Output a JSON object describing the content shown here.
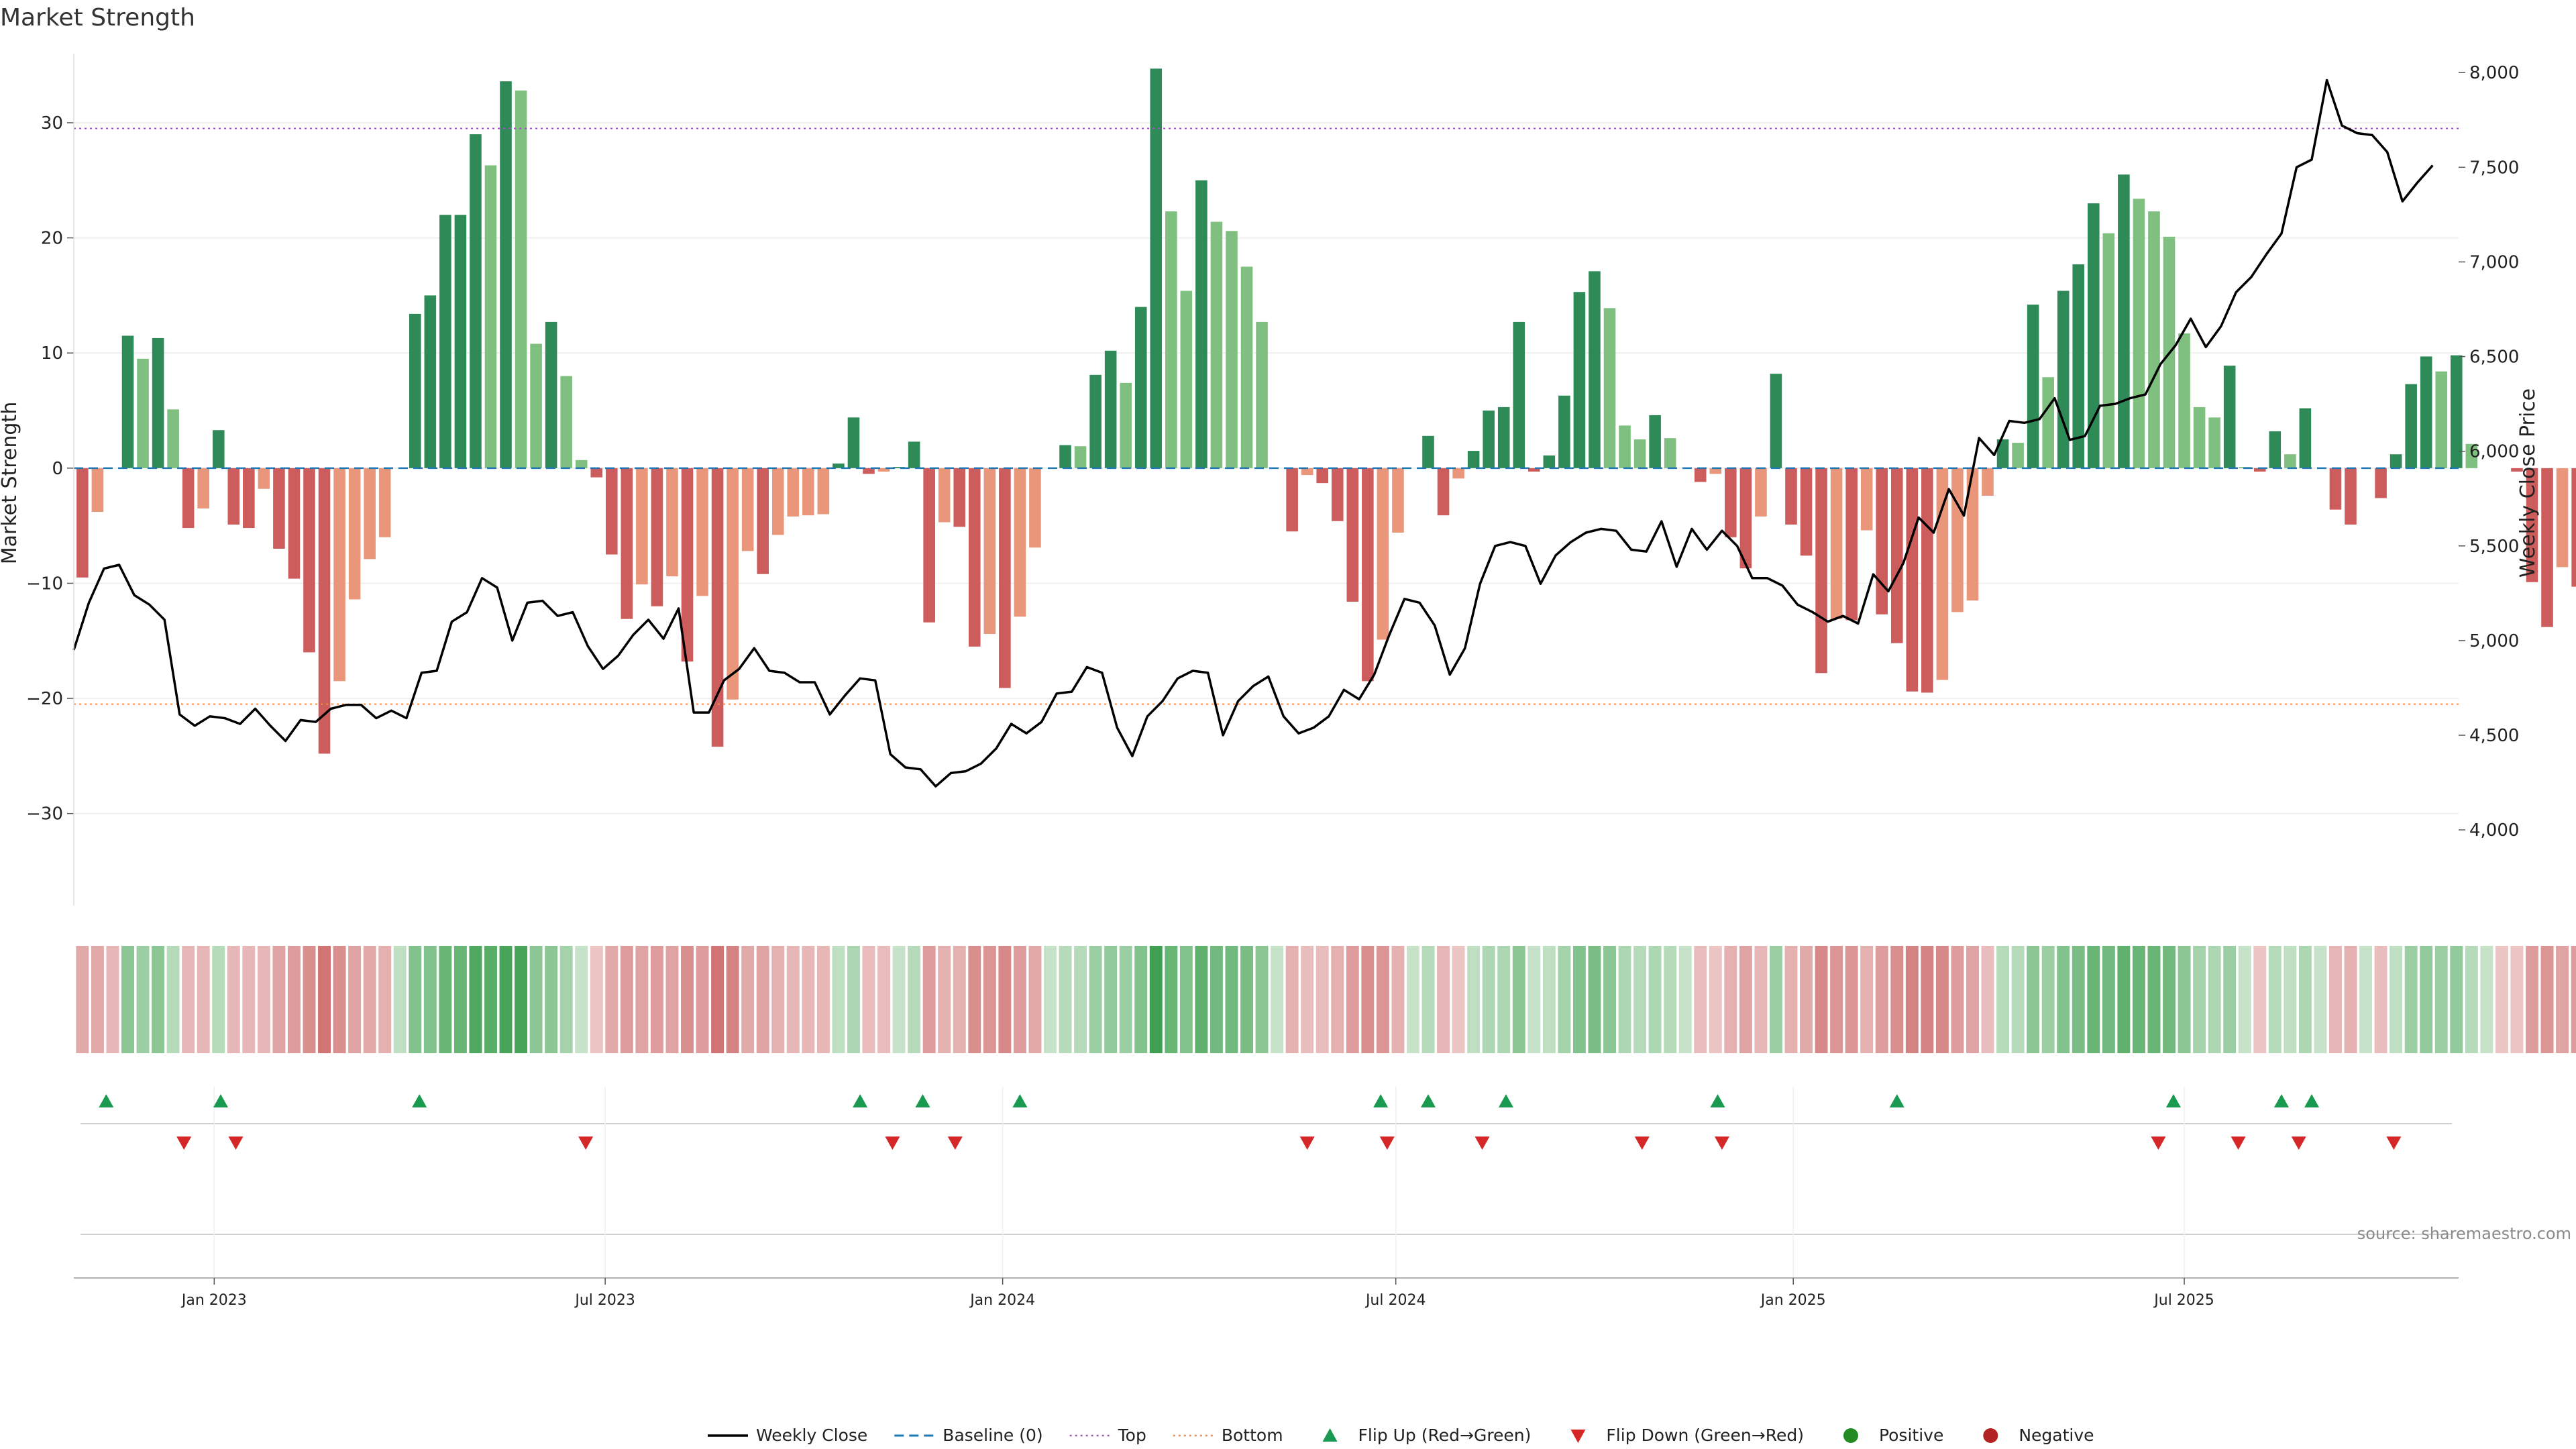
{
  "chart_data": {
    "type": "bar",
    "title": "Market Strength",
    "ylabel_left": "Market Strength",
    "ylabel_right": "Weekly Close Price",
    "source": "source: sharemaestro.com",
    "left_ylim": [
      -38,
      36
    ],
    "left_yticks": [
      30,
      20,
      10,
      0,
      -10,
      -20,
      -30
    ],
    "left_ytick_labels": [
      "30",
      "20",
      "10",
      "0",
      "−10",
      "−20",
      "−30"
    ],
    "right_ylim": [
      3600,
      8100
    ],
    "right_yticks": [
      8000,
      7500,
      7000,
      6500,
      6000,
      5500,
      5000,
      4500,
      4000
    ],
    "right_ytick_labels": [
      "8,000",
      "7,500",
      "7,000",
      "6,500",
      "6,000",
      "5,500",
      "5,000",
      "4,500",
      "4,000"
    ],
    "x_start": "2022-10-28",
    "x_end": "2025-11-05",
    "x_ticks": [
      {
        "date": "2023-01-01",
        "label": "Jan 2023"
      },
      {
        "date": "2023-07-01",
        "label": "Jul 2023"
      },
      {
        "date": "2024-01-01",
        "label": "Jan 2024"
      },
      {
        "date": "2024-07-01",
        "label": "Jul 2024"
      },
      {
        "date": "2025-01-01",
        "label": "Jan 2025"
      },
      {
        "date": "2025-07-01",
        "label": "Jul 2025"
      }
    ],
    "top_threshold": 29.5,
    "bottom_threshold": -20.5,
    "grid": true,
    "legend_position": "bottom",
    "colors": {
      "bar_strong_positive": "#2e8b57",
      "bar_weak_positive": "#7fbf7f",
      "bar_strong_negative": "#cd5c5c",
      "bar_weak_negative": "#e9967a",
      "close_line": "#000000",
      "baseline": "#1f77b4",
      "top": "#9b59b6",
      "bottom": "#f08c50",
      "flip_up": "#1a9a50",
      "flip_down": "#d62728",
      "positive": "#228b22",
      "negative": "#b22222"
    },
    "strength_first_week": "2022-11-01",
    "strength": [
      -9.5,
      -3.8,
      0,
      11.5,
      9.5,
      11.3,
      5.1,
      -5.2,
      -3.5,
      3.3,
      -4.9,
      -5.2,
      -1.8,
      -7,
      -9.6,
      -16,
      -24.8,
      -18.5,
      -11.4,
      -7.9,
      -6,
      0,
      13.4,
      15,
      22,
      22,
      29,
      26.3,
      33.6,
      32.8,
      10.8,
      12.7,
      8,
      0.7,
      -0.8,
      -7.5,
      -13.1,
      -10.1,
      -12,
      -9.4,
      -16.8,
      -11.1,
      -24.2,
      -20.1,
      -7.2,
      -9.2,
      -5.8,
      -4.2,
      -4.1,
      -4,
      0.4,
      4.4,
      -0.5,
      -0.3,
      0.1,
      2.3,
      -13.4,
      -4.7,
      -5.1,
      -15.5,
      -14.4,
      -19.1,
      -12.9,
      -6.9,
      0,
      2,
      1.9,
      8.1,
      10.2,
      7.4,
      14,
      34.7,
      22.3,
      15.4,
      25,
      21.4,
      20.6,
      17.5,
      12.7,
      0,
      -5.5,
      -0.6,
      -1.3,
      -4.6,
      -11.6,
      -18.5,
      -14.9,
      -5.6,
      0,
      2.8,
      -4.1,
      -0.9,
      1.5,
      5,
      5.3,
      12.7,
      -0.3,
      1.1,
      6.3,
      15.3,
      17.1,
      13.9,
      3.7,
      2.5,
      4.6,
      2.6,
      0,
      -1.2,
      -0.5,
      -6,
      -8.7,
      -4.2,
      8.2,
      -4.9,
      -7.6,
      -17.8,
      -13.1,
      -13.2,
      -5.4,
      -12.7,
      -15.2,
      -19.4,
      -19.5,
      -18.4,
      -12.5,
      -11.5,
      -2.4,
      2.5,
      2.2,
      14.2,
      7.9,
      15.4,
      17.7,
      23,
      20.4,
      25.5,
      23.4,
      22.3,
      20.1,
      11.7,
      5.3,
      4.4,
      8.9,
      0.1,
      -0.3,
      3.2,
      1.2,
      5.2,
      0,
      -3.6,
      -4.9,
      0,
      -2.6,
      1.2,
      7.3,
      9.7,
      8.4,
      9.8,
      2.1,
      0,
      0,
      -0.3,
      -9.9,
      -13.8,
      -8.6,
      -10.3
    ],
    "close_first_week": "2022-10-28",
    "close": [
      4950,
      5200,
      5380,
      5400,
      5240,
      5190,
      5110,
      4610,
      4550,
      4600,
      4590,
      4560,
      4640,
      4550,
      4470,
      4580,
      4570,
      4640,
      4660,
      4660,
      4590,
      4630,
      4590,
      4830,
      4840,
      5100,
      5150,
      5330,
      5280,
      5000,
      5200,
      5210,
      5130,
      5150,
      4970,
      4850,
      4920,
      5030,
      5110,
      5010,
      5170,
      4620,
      4620,
      4790,
      4850,
      4960,
      4840,
      4830,
      4780,
      4780,
      4610,
      4710,
      4800,
      4790,
      4400,
      4330,
      4320,
      4230,
      4300,
      4310,
      4350,
      4430,
      4560,
      4510,
      4570,
      4720,
      4730,
      4860,
      4830,
      4540,
      4390,
      4600,
      4680,
      4800,
      4840,
      4830,
      4500,
      4680,
      4760,
      4810,
      4600,
      4510,
      4540,
      4600,
      4740,
      4690,
      4820,
      5030,
      5220,
      5200,
      5080,
      4820,
      4960,
      5300,
      5500,
      5520,
      5500,
      5300,
      5450,
      5520,
      5570,
      5590,
      5580,
      5480,
      5470,
      5630,
      5390,
      5590,
      5480,
      5580,
      5500,
      5330,
      5330,
      5290,
      5190,
      5150,
      5100,
      5130,
      5090,
      5350,
      5260,
      5410,
      5650,
      5570,
      5800,
      5660,
      6070,
      5980,
      6160,
      6150,
      6170,
      6280,
      6060,
      6080,
      6240,
      6250,
      6280,
      6300,
      6460,
      6560,
      6700,
      6550,
      6660,
      6840,
      6920,
      7040,
      7150,
      7500,
      7540,
      7960,
      7720,
      7680,
      7670,
      7580,
      7320,
      7420,
      7510
    ],
    "heat_levels": [
      -0.4,
      -0.4,
      -0.3,
      0.55,
      0.45,
      0.55,
      0.3,
      -0.3,
      -0.3,
      0.3,
      -0.3,
      -0.3,
      -0.3,
      -0.45,
      -0.5,
      -0.6,
      -0.8,
      -0.6,
      -0.45,
      -0.4,
      -0.35,
      0.25,
      0.6,
      0.6,
      0.75,
      0.75,
      0.9,
      0.85,
      0.95,
      0.95,
      0.55,
      0.55,
      0.4,
      0.2,
      -0.2,
      -0.4,
      -0.5,
      -0.45,
      -0.5,
      -0.45,
      -0.6,
      -0.5,
      -0.8,
      -0.7,
      -0.4,
      -0.45,
      -0.35,
      -0.3,
      -0.3,
      -0.3,
      0.25,
      0.35,
      -0.25,
      -0.25,
      0.2,
      0.3,
      -0.5,
      -0.35,
      -0.35,
      -0.6,
      -0.55,
      -0.65,
      -0.5,
      -0.4,
      0.2,
      0.3,
      0.3,
      0.45,
      0.5,
      0.45,
      0.6,
      1,
      0.75,
      0.6,
      0.8,
      0.7,
      0.7,
      0.65,
      0.55,
      0.2,
      -0.35,
      -0.25,
      -0.25,
      -0.35,
      -0.5,
      -0.6,
      -0.55,
      -0.35,
      0.2,
      0.3,
      -0.3,
      -0.2,
      0.25,
      0.35,
      0.35,
      0.55,
      0.2,
      0.25,
      0.4,
      0.6,
      0.65,
      0.55,
      0.35,
      0.3,
      0.35,
      0.3,
      0.2,
      -0.25,
      -0.2,
      -0.35,
      -0.45,
      -0.3,
      0.45,
      -0.35,
      -0.4,
      -0.65,
      -0.55,
      -0.55,
      -0.35,
      -0.5,
      -0.6,
      -0.7,
      -0.7,
      -0.65,
      -0.5,
      -0.45,
      -0.25,
      0.3,
      0.3,
      0.55,
      0.45,
      0.6,
      0.65,
      0.75,
      0.7,
      0.8,
      0.75,
      0.75,
      0.7,
      0.55,
      0.4,
      0.35,
      0.45,
      0.2,
      -0.2,
      0.3,
      0.25,
      0.35,
      0.2,
      -0.3,
      -0.35,
      0.2,
      -0.25,
      0.25,
      0.45,
      0.5,
      0.45,
      0.5,
      0.3,
      0.2,
      -0.2,
      -0.2,
      -0.5,
      -0.55,
      -0.45,
      -0.5
    ],
    "flip_up_dates": [
      "2022-11-12",
      "2023-01-04",
      "2023-04-06",
      "2023-10-27",
      "2023-11-25",
      "2024-01-09",
      "2024-06-24",
      "2024-07-16",
      "2024-08-21",
      "2024-11-27",
      "2025-02-18",
      "2025-06-26",
      "2025-08-15",
      "2025-08-29"
    ],
    "flip_down_dates": [
      "2022-12-18",
      "2023-01-11",
      "2023-06-22",
      "2023-11-11",
      "2023-12-10",
      "2024-05-21",
      "2024-06-27",
      "2024-08-10",
      "2024-10-23",
      "2024-11-29",
      "2025-06-19",
      "2025-07-26",
      "2025-08-23",
      "2025-10-06"
    ],
    "legend": [
      {
        "kind": "line",
        "label": "Weekly Close"
      },
      {
        "kind": "baseline",
        "label": "Baseline (0)"
      },
      {
        "kind": "top",
        "label": "Top"
      },
      {
        "kind": "bottom",
        "label": "Bottom"
      },
      {
        "kind": "flip-up",
        "label": "Flip Up (Red→Green)"
      },
      {
        "kind": "flip-down",
        "label": "Flip Down (Green→Red)"
      },
      {
        "kind": "positive",
        "label": "Positive"
      },
      {
        "kind": "negative",
        "label": "Negative"
      }
    ]
  }
}
